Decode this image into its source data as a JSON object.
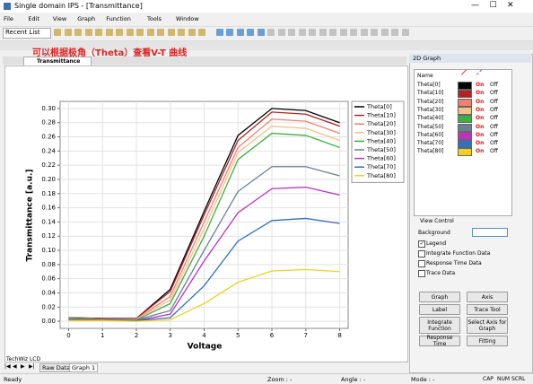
{
  "window": {
    "title": "Single domain IPS - [Transmittance]",
    "menu": [
      "File",
      "Edit",
      "View",
      "Graph",
      "Function",
      "Tools",
      "Window"
    ],
    "recent": "Recent List",
    "annotation": "可以根据极角（Theta）查看V-T 曲线",
    "tab": "Transmittance",
    "app": "TechWiz LCD",
    "bottom_tabs": [
      "Raw Data",
      "Graph 1"
    ]
  },
  "chart_data": {
    "type": "line",
    "x_label": "Voltage",
    "y_label": "Transmittance [a.u.]",
    "x": [
      0,
      1,
      2,
      3,
      4,
      5,
      6,
      7,
      8
    ],
    "xlim": [
      -0.25,
      8.25
    ],
    "xticks": [
      0,
      1,
      2,
      3,
      4,
      5,
      6,
      7,
      8
    ],
    "ylim": [
      -0.01,
      0.31
    ],
    "yticks": [
      {
        "value": 0,
        "label": "0.00"
      },
      {
        "value": 0.02,
        "label": "0.02"
      },
      {
        "value": 0.04,
        "label": "0.04"
      },
      {
        "value": 0.06,
        "label": "0.06"
      },
      {
        "value": 0.08,
        "label": "0.08"
      },
      {
        "value": 0.1,
        "label": "0.10"
      },
      {
        "value": 0.12,
        "label": "0.12"
      },
      {
        "value": 0.14,
        "label": "0.14"
      },
      {
        "value": 0.16,
        "label": "0.16"
      },
      {
        "value": 0.18,
        "label": "0.18"
      },
      {
        "value": 0.2,
        "label": "0.20"
      },
      {
        "value": 0.22,
        "label": "0.22"
      },
      {
        "value": 0.24,
        "label": "0.24"
      },
      {
        "value": 0.26,
        "label": "0.26"
      },
      {
        "value": 0.28,
        "label": "0.28"
      },
      {
        "value": 0.3,
        "label": "0.30"
      }
    ],
    "grid": true,
    "legend": "right",
    "series": [
      {
        "name": "Theta[0]",
        "color": "#000000",
        "values": [
          0.005,
          0.004,
          0.004,
          0.045,
          0.155,
          0.262,
          0.3,
          0.297,
          0.28
        ]
      },
      {
        "name": "Theta[10]",
        "color": "#b22222",
        "values": [
          0.005,
          0.004,
          0.004,
          0.042,
          0.15,
          0.255,
          0.295,
          0.292,
          0.275
        ]
      },
      {
        "name": "Theta[20]",
        "color": "#f08070",
        "values": [
          0.004,
          0.003,
          0.003,
          0.035,
          0.14,
          0.245,
          0.285,
          0.282,
          0.265
        ]
      },
      {
        "name": "Theta[30]",
        "color": "#f5c08a",
        "values": [
          0.004,
          0.003,
          0.003,
          0.03,
          0.13,
          0.238,
          0.275,
          0.272,
          0.255
        ]
      },
      {
        "name": "Theta[40]",
        "color": "#3cb043",
        "values": [
          0.004,
          0.003,
          0.002,
          0.025,
          0.12,
          0.228,
          0.265,
          0.262,
          0.245
        ]
      },
      {
        "name": "Theta[50]",
        "color": "#6a7f94",
        "values": [
          0.003,
          0.002,
          0.002,
          0.015,
          0.1,
          0.183,
          0.218,
          0.218,
          0.205
        ]
      },
      {
        "name": "Theta[60]",
        "color": "#c030c0",
        "values": [
          0.002,
          0.002,
          0.001,
          0.01,
          0.085,
          0.153,
          0.187,
          0.189,
          0.178
        ]
      },
      {
        "name": "Theta[70]",
        "color": "#3070c0",
        "values": [
          0.002,
          0.001,
          0.001,
          0.005,
          0.05,
          0.113,
          0.142,
          0.145,
          0.138
        ]
      },
      {
        "name": "Theta[80]",
        "color": "#f0d020",
        "values": [
          0.001,
          0.001,
          0.0,
          0.002,
          0.025,
          0.055,
          0.071,
          0.073,
          0.07
        ]
      }
    ]
  },
  "panel": {
    "title": "2D Graph",
    "name_header": "Name",
    "on": "On",
    "off": "Off",
    "view_control": "View Control",
    "background": "Background",
    "checks": [
      {
        "label": "Legend",
        "checked": true
      },
      {
        "label": "Integrate Function Data",
        "checked": false
      },
      {
        "label": "Response Time Data",
        "checked": false
      },
      {
        "label": "Trace Data",
        "checked": false
      }
    ],
    "buttons": [
      "Graph",
      "Axis",
      "Label",
      "Trace Tool",
      "Integrate Function",
      "Select Axis for Graph",
      "Response Time",
      "Fitting"
    ]
  },
  "status": {
    "ready": "Ready",
    "zoom": "Zoom : -",
    "angle": "Angle : -",
    "mode": "Mode : -",
    "keys": [
      "CAP",
      "NUM",
      "SCRL"
    ]
  }
}
